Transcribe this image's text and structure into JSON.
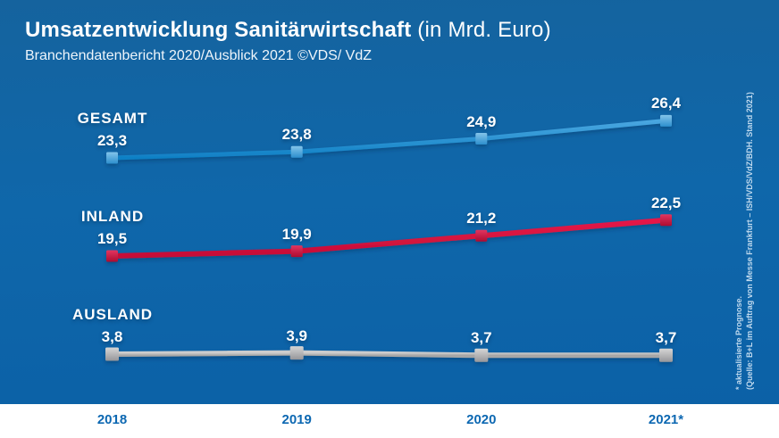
{
  "header": {
    "title": "Umsatzentwicklung Sanitärwirtschaft",
    "title_suffix": " (in Mrd. Euro)",
    "subtitle": "Branchendatenbericht 2020/Ausblick 2021 ©VDS/ VdZ"
  },
  "footnote": {
    "line1": "* aktualisierte Prognose.",
    "line2": "(Quelle: B+L im Auftrag von Messe Frankfurt – ISH/VDS/VdZ/BDH. Stand 2021)"
  },
  "colors": {
    "background_top": "#15639e",
    "background_bottom": "#0b60a6",
    "gesamt_line": "#1b8ad2",
    "inland_line": "#d6123e",
    "ausland_line": "#b5b5b5",
    "value_label_text": "#ffffff",
    "axis_label_text": "#0d68b2",
    "footer_background": "#ffffff"
  },
  "chart_data": {
    "type": "line",
    "title": "Umsatzentwicklung Sanitärwirtschaft (in Mrd. Euro)",
    "subtitle": "Branchendatenbericht 2020/Ausblick 2021 ©VDS/ VdZ",
    "xlabel": "",
    "ylabel": "Mrd. Euro",
    "grid": false,
    "legend_position": "inline-left-of-series",
    "decimal_separator": ",",
    "x": [
      "2018",
      "2019",
      "2020",
      "2021*"
    ],
    "series": [
      {
        "name": "GESAMT",
        "color": "#1b8ad2",
        "values": [
          23.3,
          23.8,
          24.9,
          26.4
        ]
      },
      {
        "name": "INLAND",
        "color": "#d6123e",
        "values": [
          19.5,
          19.9,
          21.2,
          22.5
        ]
      },
      {
        "name": "AUSLAND",
        "color": "#b5b5b5",
        "values": [
          3.8,
          3.9,
          3.7,
          3.7
        ]
      }
    ]
  }
}
